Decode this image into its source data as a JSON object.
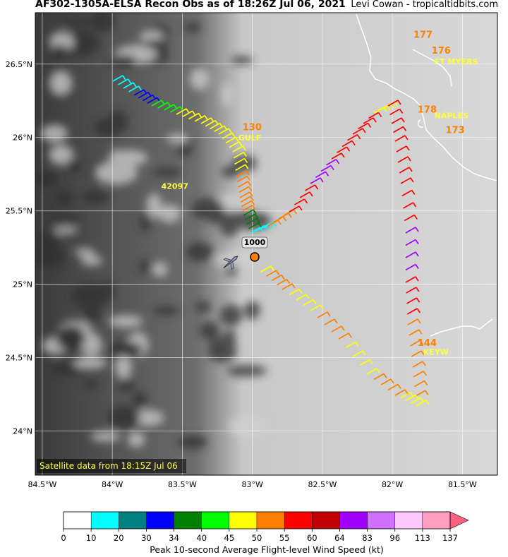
{
  "title": "AF302-1305A-ELSA Recon Obs as of 18:26Z Jul 06, 2021",
  "credit": "Levi Cowan - tropicaltidbits.com",
  "satellite_note": "Satellite data from 18:15Z Jul 06",
  "colorbar": {
    "label": "Peak 10-second Average Flight-level Wind Speed (kt)",
    "ticks": [
      "0",
      "10",
      "20",
      "30",
      "34",
      "40",
      "45",
      "50",
      "55",
      "60",
      "64",
      "83",
      "96",
      "113",
      "137"
    ],
    "colors": [
      "#ffffff",
      "#00ffff",
      "#008080",
      "#0000ff",
      "#008000",
      "#00ff00",
      "#ffff00",
      "#ff8000",
      "#ff0000",
      "#c00000",
      "#a000ff",
      "#d070ff",
      "#ffc8ff",
      "#ffa0c0"
    ],
    "extend_color": "#ff6080"
  },
  "map": {
    "lon_labels": [
      "84.5°W",
      "84°W",
      "83.5°W",
      "83°W",
      "82.5°W",
      "82°W",
      "81.5°W"
    ],
    "lat_labels": [
      "26.5°N",
      "26°N",
      "25.5°N",
      "25°N",
      "24.5°N",
      "24°N"
    ],
    "lon_range": [
      -84.55,
      -81.25
    ],
    "lat_range": [
      23.7,
      26.85
    ]
  },
  "center": {
    "label": "1000",
    "lon": -83.0,
    "lat": 25.18
  },
  "stations": [
    {
      "label": "42097",
      "lon": -83.65,
      "lat": 25.65,
      "color": "#ffff40"
    },
    {
      "label": "KEYW",
      "lon": -81.78,
      "lat": 24.52,
      "color": "#ffff40"
    },
    {
      "label": "NAPLES",
      "lon": -81.7,
      "lat": 26.13,
      "color": "#ffff40"
    },
    {
      "label": "FT MYERS",
      "lon": -81.7,
      "lat": 26.5,
      "color": "#ffff40"
    },
    {
      "label": "GULF",
      "lon": -83.1,
      "lat": 25.98,
      "color": "#ffff40"
    }
  ],
  "pressure_labels": [
    {
      "label": "130",
      "lon": -83.07,
      "lat": 26.05
    },
    {
      "label": "177",
      "lon": -81.85,
      "lat": 26.68
    },
    {
      "label": "176",
      "lon": -81.72,
      "lat": 26.57
    },
    {
      "label": "178",
      "lon": -81.82,
      "lat": 26.17
    },
    {
      "label": "173",
      "lon": -81.62,
      "lat": 26.03
    },
    {
      "label": "144",
      "lon": -81.82,
      "lat": 24.58
    }
  ],
  "legend_plane": "aircraft-icon"
}
